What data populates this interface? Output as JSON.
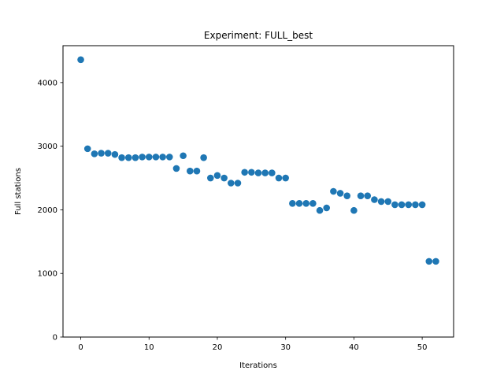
{
  "chart_data": {
    "type": "scatter",
    "title": "Experiment: FULL_best",
    "xlabel": "Iterations",
    "ylabel": "Full stations",
    "xlim": [
      -2.6,
      54.6
    ],
    "ylim": [
      0,
      4580
    ],
    "xticks": [
      0,
      10,
      20,
      30,
      40,
      50
    ],
    "yticks": [
      0,
      1000,
      2000,
      3000,
      4000
    ],
    "grid": false,
    "legend": "none",
    "marker_color": "#1f77b4",
    "series": [
      {
        "x": [
          0,
          1,
          2,
          3,
          4,
          5,
          6,
          7,
          8,
          9,
          10,
          11,
          12,
          13,
          14,
          15,
          16,
          17,
          18,
          19,
          20,
          21,
          22,
          23,
          24,
          25,
          26,
          27,
          28,
          29,
          30,
          31,
          32,
          33,
          34,
          35,
          36,
          37,
          38,
          39,
          40,
          41,
          42,
          43,
          44,
          45,
          46,
          47,
          48,
          49,
          50,
          51,
          52
        ],
        "y": [
          4360,
          2960,
          2880,
          2890,
          2890,
          2870,
          2820,
          2820,
          2820,
          2830,
          2830,
          2830,
          2830,
          2830,
          2650,
          2850,
          2610,
          2610,
          2820,
          2500,
          2540,
          2500,
          2420,
          2420,
          2590,
          2590,
          2580,
          2580,
          2580,
          2500,
          2500,
          2100,
          2100,
          2100,
          2100,
          1990,
          2030,
          2290,
          2260,
          2220,
          1990,
          2220,
          2220,
          2160,
          2130,
          2130,
          2080,
          2080,
          2080,
          2080,
          2080,
          1190,
          1190
        ]
      }
    ]
  }
}
